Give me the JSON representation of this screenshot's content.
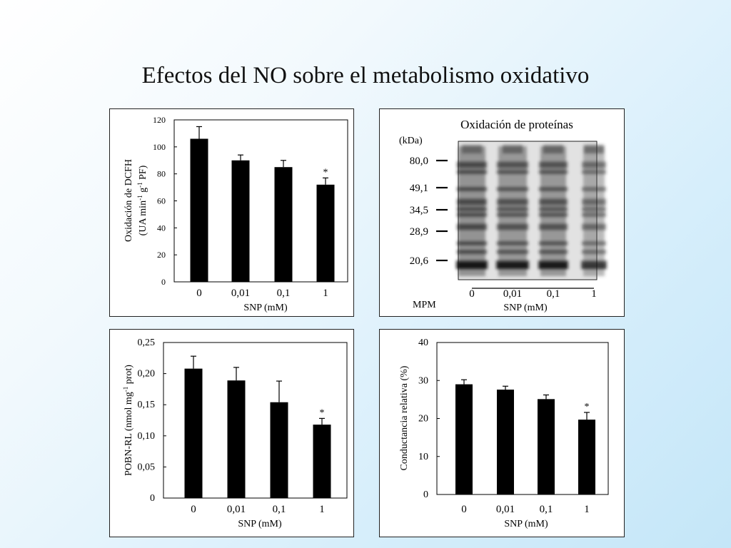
{
  "slide": {
    "title": "Efectos del NO sobre el metabolismo oxidativo",
    "background_colors": [
      "#ffffff",
      "#c4e6f8"
    ]
  },
  "chart_data": [
    {
      "id": "dcfh",
      "type": "bar",
      "categories": [
        "0",
        "0,01",
        "0,1",
        "1"
      ],
      "values": [
        106,
        90,
        85,
        72
      ],
      "errors": [
        9,
        4,
        5,
        5
      ],
      "significance": [
        "",
        "",
        "",
        "*"
      ],
      "ylabel_line1": "Oxidación de DCFH",
      "ylabel_line2": "(UA min-1 g-1 PF)",
      "xlabel": "SNP (mM)",
      "ylim": [
        0,
        120
      ],
      "yticks": [
        "0",
        "20",
        "40",
        "60",
        "80",
        "100",
        "120"
      ],
      "bar_color": "#000000"
    },
    {
      "id": "pobn",
      "type": "bar",
      "categories": [
        "0",
        "0,01",
        "0,1",
        "1"
      ],
      "values": [
        0.208,
        0.189,
        0.154,
        0.118
      ],
      "errors": [
        0.02,
        0.021,
        0.034,
        0.01
      ],
      "significance": [
        "",
        "",
        "",
        "*"
      ],
      "ylabel": "POBN-RL (nmol mg-1 prot)",
      "xlabel": "SNP (mM)",
      "ylim": [
        0,
        0.25
      ],
      "yticks": [
        "0",
        "0,05",
        "0,10",
        "0,15",
        "0,20",
        "0,25"
      ],
      "bar_color": "#000000"
    },
    {
      "id": "cond",
      "type": "bar",
      "categories": [
        "0",
        "0,01",
        "0,1",
        "1"
      ],
      "values": [
        29,
        27.6,
        25.1,
        19.7
      ],
      "errors": [
        1.2,
        0.9,
        1.1,
        1.9
      ],
      "significance": [
        "",
        "",
        "",
        "*"
      ],
      "ylabel": "Conductancia relativa (%)",
      "xlabel": "SNP (mM)",
      "ylim": [
        0,
        40
      ],
      "yticks": [
        "0",
        "10",
        "20",
        "30",
        "40"
      ],
      "bar_color": "#000000"
    }
  ],
  "blot": {
    "title": "Oxidación de proteínas",
    "unit": "(kDa)",
    "markers": [
      "80,0",
      "49,1",
      "34,5",
      "28,9",
      "20,6"
    ],
    "lanes": [
      "0",
      "0,01",
      "0,1",
      "1"
    ],
    "mpm_label": "MPM",
    "xlabel": "SNP (mM)"
  }
}
